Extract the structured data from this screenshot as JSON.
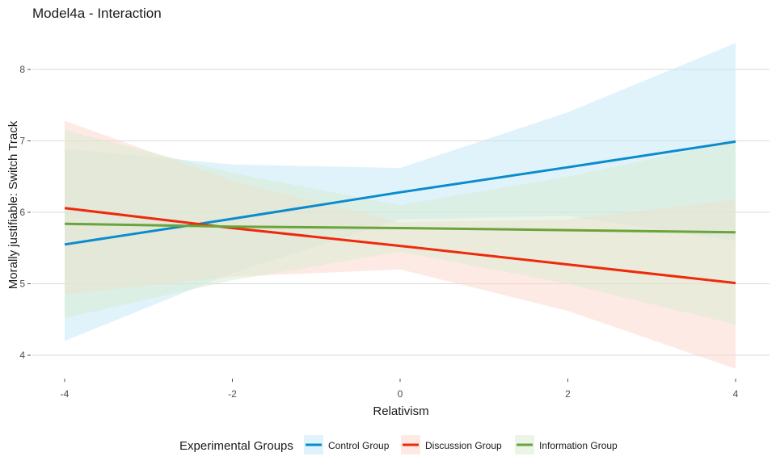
{
  "chart_data": {
    "type": "line",
    "title": "Model4a - Interaction",
    "xlabel": "Relativism",
    "ylabel": "Morally justifiable: Switch Track",
    "xlim": [
      -4,
      4
    ],
    "ylim": [
      3.8,
      8.4
    ],
    "x_ticks": [
      -4,
      -2,
      0,
      2,
      4
    ],
    "y_ticks": [
      4,
      5,
      6,
      7,
      8
    ],
    "grid": "horizontal",
    "legend": {
      "title": "Experimental Groups",
      "placement": "bottom"
    },
    "x": [
      -4,
      -2,
      0,
      2,
      4
    ],
    "series": [
      {
        "name": "Control Group",
        "color": "#0a8ccc",
        "band_color": "#c2e8f5",
        "values": [
          5.55,
          5.91,
          6.28,
          6.63,
          6.99
        ],
        "upper": [
          6.89,
          6.67,
          6.62,
          7.4,
          8.37
        ],
        "lower": [
          4.2,
          5.15,
          5.9,
          5.95,
          5.6
        ]
      },
      {
        "name": "Discussion Group",
        "color": "#ee2a0b",
        "band_color": "#fcd6cc",
        "values": [
          6.06,
          5.78,
          5.53,
          5.27,
          5.01
        ],
        "upper": [
          7.28,
          6.44,
          5.86,
          5.9,
          6.18
        ],
        "lower": [
          4.85,
          5.1,
          5.2,
          4.62,
          3.81
        ]
      },
      {
        "name": "Information Group",
        "color": "#6aa43a",
        "band_color": "#d8ebcf",
        "values": [
          5.84,
          5.8,
          5.78,
          5.75,
          5.72
        ],
        "upper": [
          7.15,
          6.55,
          6.1,
          6.5,
          7.0
        ],
        "lower": [
          4.52,
          5.05,
          5.45,
          5.0,
          4.43
        ]
      }
    ]
  }
}
